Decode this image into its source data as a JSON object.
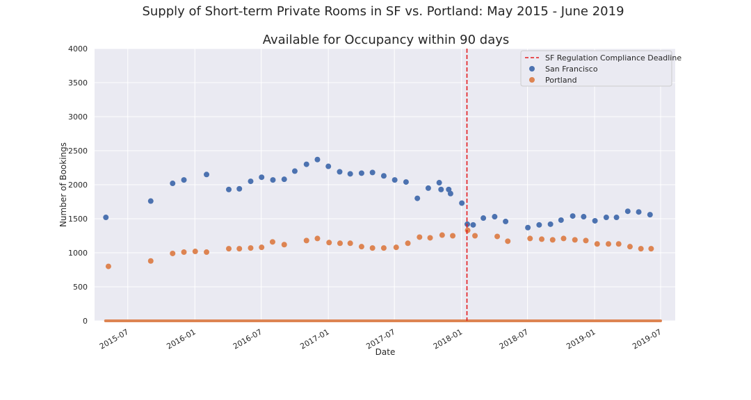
{
  "chart_data": {
    "type": "scatter",
    "suptitle": "Supply of Short-term Private Rooms in SF vs. Portland: May 2015 - June 2019",
    "title": "Available for Occupancy within 90 days",
    "xlabel": "Date",
    "ylabel": "Number of Bookings",
    "xlim": [
      "2015-04-01",
      "2019-08-10"
    ],
    "ylim": [
      0,
      4000
    ],
    "y_ticks": [
      0,
      500,
      1000,
      1500,
      2000,
      2500,
      3000,
      3500,
      4000
    ],
    "x_ticks": [
      "2015-07",
      "2016-01",
      "2016-07",
      "2017-01",
      "2017-07",
      "2018-01",
      "2018-07",
      "2019-01",
      "2019-07"
    ],
    "grid": true,
    "background": "#eaeaf2",
    "legend_position": "top-right",
    "vline": {
      "x": "2018-01-16",
      "label": "SF Regulation Compliance Deadline",
      "color": "#e41a1c",
      "style": "dashed"
    },
    "baseline": {
      "y": 0,
      "x_range": [
        "2015-05-01",
        "2019-07-01"
      ],
      "color": "#dd8452"
    },
    "series": [
      {
        "name": "San Francisco",
        "color": "#4c72b0",
        "points": [
          [
            "2015-05-02",
            1520
          ],
          [
            "2015-09-02",
            1760
          ],
          [
            "2015-11-01",
            2020
          ],
          [
            "2015-12-02",
            2070
          ],
          [
            "2016-02-02",
            2150
          ],
          [
            "2016-04-03",
            1930
          ],
          [
            "2016-05-02",
            1940
          ],
          [
            "2016-06-02",
            2050
          ],
          [
            "2016-07-02",
            2110
          ],
          [
            "2016-08-02",
            2070
          ],
          [
            "2016-09-02",
            2080
          ],
          [
            "2016-10-01",
            2200
          ],
          [
            "2016-11-02",
            2300
          ],
          [
            "2016-12-02",
            2370
          ],
          [
            "2017-01-01",
            2270
          ],
          [
            "2017-02-01",
            2190
          ],
          [
            "2017-03-02",
            2160
          ],
          [
            "2017-04-02",
            2170
          ],
          [
            "2017-05-02",
            2180
          ],
          [
            "2017-06-02",
            2130
          ],
          [
            "2017-07-02",
            2070
          ],
          [
            "2017-08-02",
            2040
          ],
          [
            "2017-09-02",
            1800
          ],
          [
            "2017-10-02",
            1950
          ],
          [
            "2017-11-01",
            2030
          ],
          [
            "2017-11-06",
            1930
          ],
          [
            "2017-11-27",
            1930
          ],
          [
            "2017-12-02",
            1870
          ],
          [
            "2018-01-02",
            1730
          ],
          [
            "2018-01-17",
            1420
          ],
          [
            "2018-02-02",
            1410
          ],
          [
            "2018-03-02",
            1510
          ],
          [
            "2018-04-02",
            1530
          ],
          [
            "2018-05-02",
            1460
          ],
          [
            "2018-07-02",
            1370
          ],
          [
            "2018-08-02",
            1410
          ],
          [
            "2018-09-02",
            1420
          ],
          [
            "2018-10-01",
            1480
          ],
          [
            "2018-11-02",
            1540
          ],
          [
            "2018-12-02",
            1530
          ],
          [
            "2019-01-02",
            1470
          ],
          [
            "2019-02-02",
            1520
          ],
          [
            "2019-03-02",
            1520
          ],
          [
            "2019-04-02",
            1610
          ],
          [
            "2019-05-02",
            1600
          ],
          [
            "2019-06-02",
            1560
          ]
        ]
      },
      {
        "name": "Portland",
        "color": "#dd8452",
        "points": [
          [
            "2015-05-09",
            800
          ],
          [
            "2015-09-02",
            880
          ],
          [
            "2015-11-01",
            990
          ],
          [
            "2015-12-02",
            1010
          ],
          [
            "2016-01-02",
            1020
          ],
          [
            "2016-02-02",
            1010
          ],
          [
            "2016-04-03",
            1060
          ],
          [
            "2016-05-02",
            1060
          ],
          [
            "2016-06-02",
            1070
          ],
          [
            "2016-07-02",
            1080
          ],
          [
            "2016-08-01",
            1160
          ],
          [
            "2016-09-02",
            1120
          ],
          [
            "2016-11-02",
            1180
          ],
          [
            "2016-12-02",
            1210
          ],
          [
            "2017-01-03",
            1150
          ],
          [
            "2017-02-02",
            1140
          ],
          [
            "2017-03-02",
            1140
          ],
          [
            "2017-04-02",
            1090
          ],
          [
            "2017-05-02",
            1070
          ],
          [
            "2017-06-02",
            1070
          ],
          [
            "2017-07-06",
            1080
          ],
          [
            "2017-08-07",
            1140
          ],
          [
            "2017-09-08",
            1230
          ],
          [
            "2017-10-07",
            1220
          ],
          [
            "2017-11-09",
            1260
          ],
          [
            "2017-12-08",
            1250
          ],
          [
            "2018-01-18",
            1330
          ],
          [
            "2018-02-07",
            1250
          ],
          [
            "2018-04-09",
            1240
          ],
          [
            "2018-05-08",
            1170
          ],
          [
            "2018-07-08",
            1210
          ],
          [
            "2018-08-09",
            1200
          ],
          [
            "2018-09-08",
            1190
          ],
          [
            "2018-10-08",
            1210
          ],
          [
            "2018-11-08",
            1190
          ],
          [
            "2018-12-08",
            1180
          ],
          [
            "2019-01-08",
            1130
          ],
          [
            "2019-02-08",
            1130
          ],
          [
            "2019-03-08",
            1130
          ],
          [
            "2019-04-08",
            1090
          ],
          [
            "2019-05-08",
            1060
          ],
          [
            "2019-06-05",
            1060
          ]
        ]
      }
    ]
  }
}
